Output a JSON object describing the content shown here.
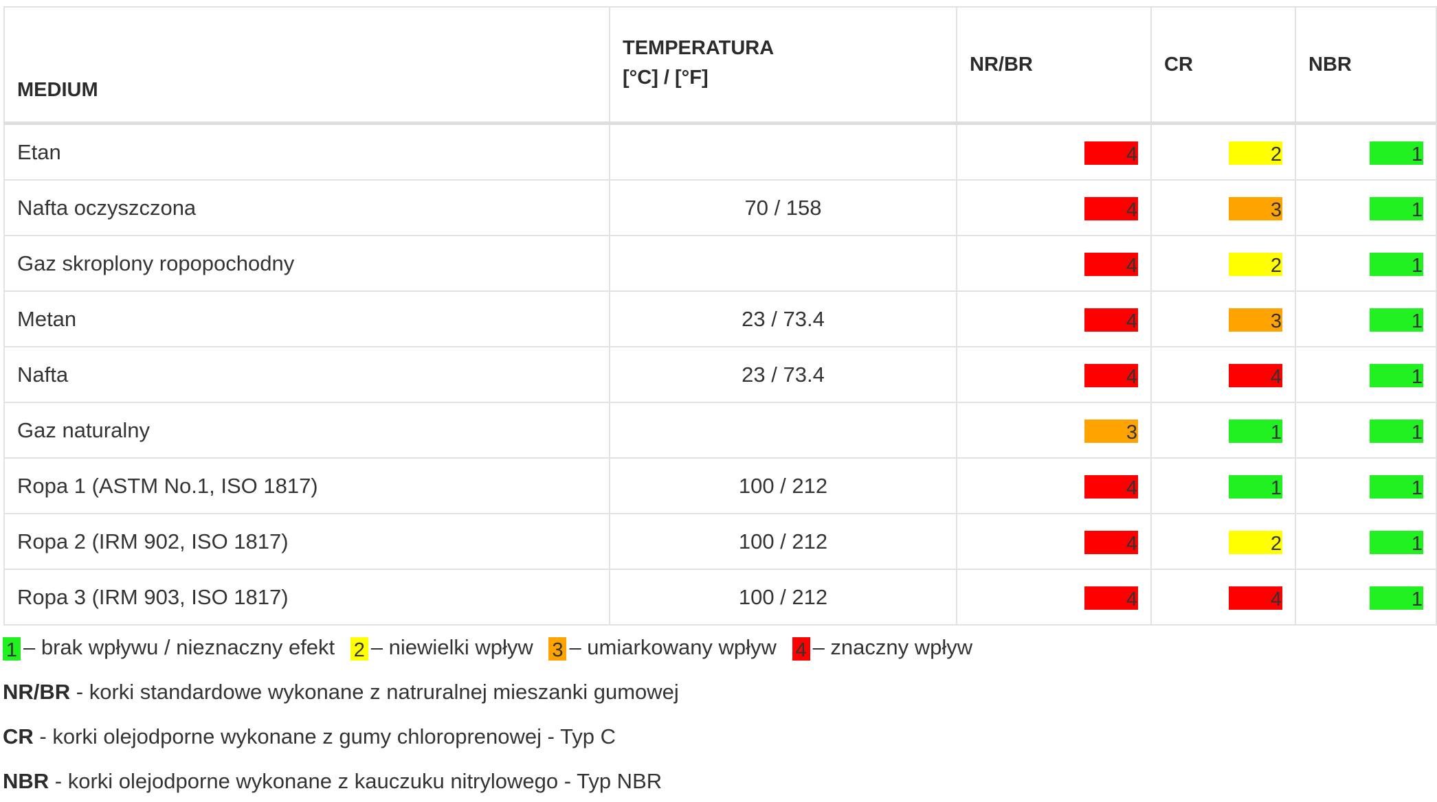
{
  "table": {
    "headers": {
      "medium": "MEDIUM",
      "temp_line1": "TEMPERATURA",
      "temp_line2": "[°C] / [°F]",
      "nrbr": "NR/BR",
      "cr": "CR",
      "nbr": "NBR"
    },
    "rows": [
      {
        "medium": "Etan",
        "temp": "",
        "nrbr": "4",
        "cr": "2",
        "nbr": "1"
      },
      {
        "medium": "Nafta oczyszczona",
        "temp": "70 / 158",
        "nrbr": "4",
        "cr": "3",
        "nbr": "1"
      },
      {
        "medium": "Gaz skroplony ropopochodny",
        "temp": "",
        "nrbr": "4",
        "cr": "2",
        "nbr": "1"
      },
      {
        "medium": "Metan",
        "temp": "23 / 73.4",
        "nrbr": "4",
        "cr": "3",
        "nbr": "1"
      },
      {
        "medium": "Nafta",
        "temp": "23 / 73.4",
        "nrbr": "4",
        "cr": "4",
        "nbr": "1"
      },
      {
        "medium": "Gaz naturalny",
        "temp": "",
        "nrbr": "3",
        "cr": "1",
        "nbr": "1"
      },
      {
        "medium": "Ropa 1 (ASTM No.1, ISO 1817)",
        "temp": "100 / 212",
        "nrbr": "4",
        "cr": "1",
        "nbr": "1"
      },
      {
        "medium": "Ropa 2 (IRM 902, ISO 1817)",
        "temp": "100 / 212",
        "nrbr": "4",
        "cr": "2",
        "nbr": "1"
      },
      {
        "medium": "Ropa 3 (IRM 903, ISO 1817)",
        "temp": "100 / 212",
        "nrbr": "4",
        "cr": "4",
        "nbr": "1"
      }
    ]
  },
  "rating_colors": {
    "1": "#21f021",
    "2": "#ffff00",
    "3": "#ffa300",
    "4": "#ff0000"
  },
  "legend": {
    "items": [
      {
        "value": "1",
        "text": "– brak wpływu / nieznaczny efekt"
      },
      {
        "value": "2",
        "text": "– niewielki wpływ"
      },
      {
        "value": "3",
        "text": "– umiarkowany wpływ"
      },
      {
        "value": "4",
        "text": "– znaczny wpływ"
      }
    ],
    "abbreviations": [
      {
        "term": "NR/BR",
        "desc": " - korki standardowe wykonane z natruralnej mieszanki gumowej"
      },
      {
        "term": "CR",
        "desc": " - korki olejodporne wykonane z gumy chloroprenowej - Typ C"
      },
      {
        "term": "NBR",
        "desc": " - korki olejodporne wykonane z kauczuku nitrylowego - Typ NBR"
      }
    ]
  }
}
